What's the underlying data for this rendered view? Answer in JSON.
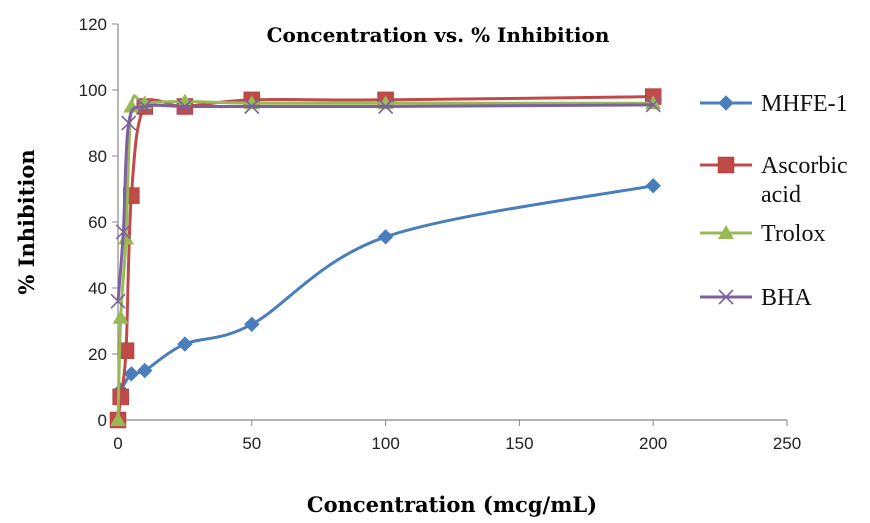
{
  "chart_data": {
    "type": "line",
    "title": "Concentration vs. % Inhibition",
    "xlabel": "Concentration (mcg/mL)",
    "ylabel": "% Inhibition",
    "xlim": [
      0,
      250
    ],
    "ylim": [
      0,
      120
    ],
    "x_ticks": [
      0,
      50,
      100,
      150,
      200,
      250
    ],
    "y_ticks": [
      0,
      20,
      40,
      60,
      80,
      100,
      120
    ],
    "grid": false,
    "legend_position": "right",
    "series": [
      {
        "name": "MHFE-1",
        "color": "#4a7ebb",
        "marker": "diamond",
        "points": [
          [
            1,
            9
          ],
          [
            5,
            14
          ],
          [
            10,
            15
          ],
          [
            25,
            23
          ],
          [
            50,
            29
          ],
          [
            100,
            55.5
          ],
          [
            200,
            71
          ]
        ]
      },
      {
        "name": "Ascorbic acid",
        "color": "#be4b48",
        "marker": "square",
        "points": [
          [
            0,
            0
          ],
          [
            1,
            7
          ],
          [
            3,
            21
          ],
          [
            5,
            68
          ],
          [
            10,
            95
          ],
          [
            25,
            95
          ],
          [
            50,
            97
          ],
          [
            100,
            97
          ],
          [
            200,
            98
          ]
        ]
      },
      {
        "name": "Trolox",
        "color": "#98b954",
        "marker": "triangle",
        "points": [
          [
            0,
            0
          ],
          [
            1,
            31
          ],
          [
            3,
            55
          ],
          [
            5,
            95
          ],
          [
            10,
            96
          ],
          [
            25,
            96.5
          ],
          [
            50,
            96
          ],
          [
            100,
            96
          ],
          [
            200,
            96
          ]
        ]
      },
      {
        "name": "BHA",
        "color": "#7d60a0",
        "marker": "x",
        "points": [
          [
            0,
            36
          ],
          [
            2,
            57
          ],
          [
            4,
            90
          ],
          [
            10,
            95
          ],
          [
            25,
            95
          ],
          [
            50,
            95
          ],
          [
            100,
            95
          ],
          [
            200,
            95.5
          ]
        ]
      }
    ]
  }
}
